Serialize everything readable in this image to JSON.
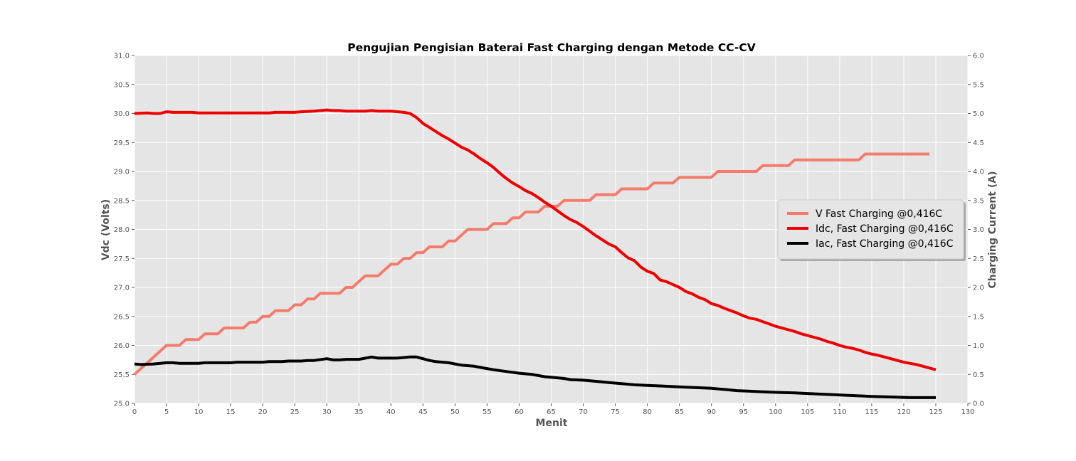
{
  "chart_data": {
    "type": "line",
    "title": "Pengujian Pengisian Baterai Fast Charging dengan Metode CC-CV",
    "xlabel": "Menit",
    "ylabel": "Vdc (Volts)",
    "y2label": "Charging Current (A)",
    "xlim": [
      0,
      130
    ],
    "ylim": [
      25.0,
      31.0
    ],
    "y2lim": [
      0.0,
      6.0
    ],
    "xticks": [
      "0",
      "5",
      "10",
      "15",
      "20",
      "25",
      "30",
      "35",
      "40",
      "45",
      "50",
      "55",
      "60",
      "65",
      "70",
      "75",
      "80",
      "85",
      "90",
      "95",
      "100",
      "105",
      "110",
      "115",
      "120",
      "125",
      "130"
    ],
    "yticks": [
      "25.0",
      "25.5",
      "26.0",
      "26.5",
      "27.0",
      "27.5",
      "28.0",
      "28.5",
      "29.0",
      "29.5",
      "30.0",
      "30.5",
      "31.0"
    ],
    "y2ticks": [
      "0.0",
      "0.5",
      "1.0",
      "1.5",
      "2.0",
      "2.5",
      "3.0",
      "3.5",
      "4.0",
      "4.5",
      "5.0",
      "5.5",
      "6.0"
    ],
    "grid": true,
    "legend_position": "right",
    "series": [
      {
        "name": "V Fast Charging @0,416C",
        "axis": "left",
        "color": "#f47c6c",
        "points": [
          [
            0,
            25.5
          ],
          [
            5,
            26.0
          ],
          [
            7,
            26.0
          ],
          [
            8,
            26.1
          ],
          [
            10,
            26.1
          ],
          [
            11,
            26.2
          ],
          [
            13,
            26.2
          ],
          [
            14,
            26.3
          ],
          [
            17,
            26.3
          ],
          [
            18,
            26.4
          ],
          [
            19,
            26.4
          ],
          [
            20,
            26.5
          ],
          [
            21,
            26.5
          ],
          [
            22,
            26.6
          ],
          [
            24,
            26.6
          ],
          [
            25,
            26.7
          ],
          [
            26,
            26.7
          ],
          [
            27,
            26.8
          ],
          [
            28,
            26.8
          ],
          [
            29,
            26.9
          ],
          [
            32,
            26.9
          ],
          [
            33,
            27.0
          ],
          [
            34,
            27.0
          ],
          [
            36,
            27.2
          ],
          [
            38,
            27.2
          ],
          [
            40,
            27.4
          ],
          [
            41,
            27.4
          ],
          [
            42,
            27.5
          ],
          [
            43,
            27.5
          ],
          [
            44,
            27.6
          ],
          [
            45,
            27.6
          ],
          [
            46,
            27.7
          ],
          [
            48,
            27.7
          ],
          [
            49,
            27.8
          ],
          [
            50,
            27.8
          ],
          [
            52,
            28.0
          ],
          [
            55,
            28.0
          ],
          [
            56,
            28.1
          ],
          [
            58,
            28.1
          ],
          [
            59,
            28.2
          ],
          [
            60,
            28.2
          ],
          [
            61,
            28.3
          ],
          [
            63,
            28.3
          ],
          [
            64,
            28.4
          ],
          [
            66,
            28.4
          ],
          [
            67,
            28.5
          ],
          [
            71,
            28.5
          ],
          [
            72,
            28.6
          ],
          [
            75,
            28.6
          ],
          [
            76,
            28.7
          ],
          [
            80,
            28.7
          ],
          [
            81,
            28.8
          ],
          [
            84,
            28.8
          ],
          [
            85,
            28.9
          ],
          [
            90,
            28.9
          ],
          [
            91,
            29.0
          ],
          [
            97,
            29.0
          ],
          [
            98,
            29.1
          ],
          [
            102,
            29.1
          ],
          [
            103,
            29.2
          ],
          [
            113,
            29.2
          ],
          [
            114,
            29.3
          ],
          [
            124,
            29.3
          ]
        ]
      },
      {
        "name": "Idc, Fast Charging @0,416C",
        "axis": "right",
        "color": "#ee0000",
        "points": [
          [
            0,
            5.0
          ],
          [
            2,
            5.01
          ],
          [
            3,
            5.0
          ],
          [
            4,
            5.0
          ],
          [
            5,
            5.03
          ],
          [
            6,
            5.02
          ],
          [
            9,
            5.02
          ],
          [
            10,
            5.01
          ],
          [
            21,
            5.01
          ],
          [
            22,
            5.02
          ],
          [
            25,
            5.02
          ],
          [
            26,
            5.03
          ],
          [
            28,
            5.04
          ],
          [
            29,
            5.05
          ],
          [
            30,
            5.06
          ],
          [
            31,
            5.05
          ],
          [
            32,
            5.05
          ],
          [
            33,
            5.04
          ],
          [
            36,
            5.04
          ],
          [
            37,
            5.05
          ],
          [
            38,
            5.04
          ],
          [
            40,
            5.04
          ],
          [
            42,
            5.02
          ],
          [
            43,
            5.0
          ],
          [
            44,
            4.93
          ],
          [
            45,
            4.83
          ],
          [
            46,
            4.76
          ],
          [
            47,
            4.69
          ],
          [
            48,
            4.62
          ],
          [
            49,
            4.56
          ],
          [
            50,
            4.49
          ],
          [
            51,
            4.42
          ],
          [
            52,
            4.37
          ],
          [
            53,
            4.3
          ],
          [
            54,
            4.22
          ],
          [
            55,
            4.15
          ],
          [
            56,
            4.07
          ],
          [
            57,
            3.97
          ],
          [
            58,
            3.88
          ],
          [
            59,
            3.8
          ],
          [
            60,
            3.74
          ],
          [
            61,
            3.67
          ],
          [
            62,
            3.62
          ],
          [
            63,
            3.55
          ],
          [
            64,
            3.47
          ],
          [
            65,
            3.4
          ],
          [
            66,
            3.32
          ],
          [
            67,
            3.24
          ],
          [
            68,
            3.17
          ],
          [
            69,
            3.12
          ],
          [
            70,
            3.05
          ],
          [
            71,
            2.97
          ],
          [
            72,
            2.89
          ],
          [
            73,
            2.82
          ],
          [
            74,
            2.75
          ],
          [
            75,
            2.7
          ],
          [
            76,
            2.6
          ],
          [
            77,
            2.51
          ],
          [
            78,
            2.46
          ],
          [
            79,
            2.35
          ],
          [
            80,
            2.28
          ],
          [
            81,
            2.24
          ],
          [
            82,
            2.13
          ],
          [
            83,
            2.1
          ],
          [
            84,
            2.05
          ],
          [
            85,
            2.0
          ],
          [
            86,
            1.93
          ],
          [
            87,
            1.89
          ],
          [
            88,
            1.83
          ],
          [
            89,
            1.79
          ],
          [
            90,
            1.72
          ],
          [
            91,
            1.69
          ],
          [
            92,
            1.64
          ],
          [
            93,
            1.6
          ],
          [
            94,
            1.56
          ],
          [
            95,
            1.51
          ],
          [
            96,
            1.47
          ],
          [
            97,
            1.45
          ],
          [
            98,
            1.41
          ],
          [
            99,
            1.37
          ],
          [
            100,
            1.33
          ],
          [
            101,
            1.3
          ],
          [
            102,
            1.27
          ],
          [
            103,
            1.24
          ],
          [
            104,
            1.2
          ],
          [
            105,
            1.17
          ],
          [
            106,
            1.14
          ],
          [
            107,
            1.11
          ],
          [
            108,
            1.07
          ],
          [
            109,
            1.04
          ],
          [
            110,
            1.0
          ],
          [
            111,
            0.97
          ],
          [
            112,
            0.95
          ],
          [
            113,
            0.92
          ],
          [
            114,
            0.88
          ],
          [
            115,
            0.85
          ],
          [
            116,
            0.83
          ],
          [
            117,
            0.8
          ],
          [
            118,
            0.77
          ],
          [
            119,
            0.74
          ],
          [
            120,
            0.71
          ],
          [
            121,
            0.69
          ],
          [
            122,
            0.67
          ],
          [
            123,
            0.64
          ],
          [
            124,
            0.61
          ],
          [
            125,
            0.58
          ]
        ]
      },
      {
        "name": "Iac, Fast Charging @0,416C",
        "axis": "right",
        "color": "#000000",
        "points": [
          [
            0,
            0.68
          ],
          [
            1,
            0.67
          ],
          [
            3,
            0.68
          ],
          [
            5,
            0.7
          ],
          [
            6,
            0.7
          ],
          [
            7,
            0.69
          ],
          [
            10,
            0.69
          ],
          [
            11,
            0.7
          ],
          [
            15,
            0.7
          ],
          [
            16,
            0.71
          ],
          [
            20,
            0.71
          ],
          [
            21,
            0.72
          ],
          [
            23,
            0.72
          ],
          [
            24,
            0.73
          ],
          [
            26,
            0.73
          ],
          [
            27,
            0.74
          ],
          [
            28,
            0.74
          ],
          [
            30,
            0.77
          ],
          [
            31,
            0.75
          ],
          [
            32,
            0.75
          ],
          [
            33,
            0.76
          ],
          [
            35,
            0.76
          ],
          [
            37,
            0.8
          ],
          [
            38,
            0.78
          ],
          [
            41,
            0.78
          ],
          [
            42,
            0.79
          ],
          [
            43,
            0.8
          ],
          [
            44,
            0.8
          ],
          [
            45,
            0.77
          ],
          [
            46,
            0.74
          ],
          [
            47,
            0.72
          ],
          [
            49,
            0.7
          ],
          [
            50,
            0.68
          ],
          [
            51,
            0.66
          ],
          [
            53,
            0.64
          ],
          [
            54,
            0.62
          ],
          [
            55,
            0.6
          ],
          [
            56,
            0.58
          ],
          [
            58,
            0.55
          ],
          [
            60,
            0.52
          ],
          [
            62,
            0.5
          ],
          [
            63,
            0.48
          ],
          [
            64,
            0.46
          ],
          [
            66,
            0.44
          ],
          [
            67,
            0.43
          ],
          [
            68,
            0.41
          ],
          [
            70,
            0.4
          ],
          [
            72,
            0.38
          ],
          [
            74,
            0.36
          ],
          [
            76,
            0.34
          ],
          [
            78,
            0.32
          ],
          [
            80,
            0.31
          ],
          [
            82,
            0.3
          ],
          [
            84,
            0.29
          ],
          [
            86,
            0.28
          ],
          [
            88,
            0.27
          ],
          [
            90,
            0.26
          ],
          [
            92,
            0.24
          ],
          [
            94,
            0.22
          ],
          [
            96,
            0.21
          ],
          [
            98,
            0.2
          ],
          [
            100,
            0.19
          ],
          [
            103,
            0.18
          ],
          [
            105,
            0.17
          ],
          [
            107,
            0.16
          ],
          [
            109,
            0.15
          ],
          [
            111,
            0.14
          ],
          [
            113,
            0.13
          ],
          [
            115,
            0.12
          ],
          [
            118,
            0.11
          ],
          [
            121,
            0.1
          ],
          [
            125,
            0.1
          ]
        ]
      }
    ]
  }
}
